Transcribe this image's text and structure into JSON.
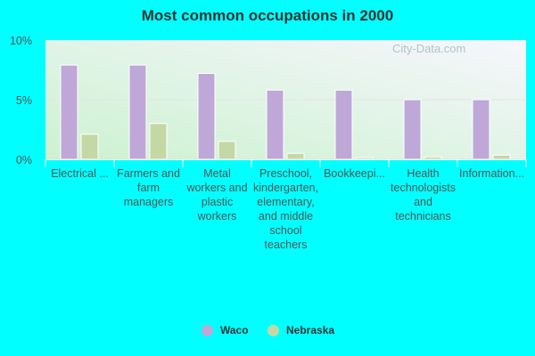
{
  "chart_data": {
    "type": "bar",
    "title": "Most common occupations in 2000",
    "categories": [
      "Electrical ...",
      "Farmers and farm managers",
      "Metal workers and plastic workers",
      "Preschool, kindergarten, elementary, and middle school teachers",
      "Bookkeepi...",
      "Health technologists and technicians",
      "Information..."
    ],
    "series": [
      {
        "name": "Waco",
        "color": "#bfa8d8",
        "values": [
          7.9,
          7.9,
          7.2,
          5.8,
          5.8,
          5.0,
          5.0
        ]
      },
      {
        "name": "Nebraska",
        "color": "#c4d8a6",
        "values": [
          2.1,
          3.0,
          1.5,
          0.5,
          0.15,
          0.2,
          0.35
        ]
      }
    ],
    "yticks": [
      "0%",
      "5%",
      "10%"
    ],
    "ylim": [
      0,
      10
    ],
    "grid": true,
    "legend": "bottom",
    "watermark": "City-Data.com"
  }
}
